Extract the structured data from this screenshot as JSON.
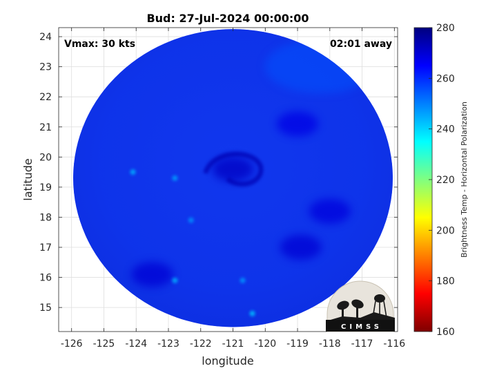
{
  "chart_data": {
    "type": "heatmap",
    "title": "Bud: 27-Jul-2024 00:00:00",
    "xlabel": "longitude",
    "ylabel": "latitude",
    "xlim": [
      -126.4,
      -115.9
    ],
    "ylim": [
      14.2,
      24.3
    ],
    "x_ticks": [
      "-126",
      "-125",
      "-124",
      "-123",
      "-122",
      "-121",
      "-120",
      "-119",
      "-118",
      "-117",
      "-116"
    ],
    "y_ticks": [
      "15",
      "16",
      "17",
      "18",
      "19",
      "20",
      "21",
      "22",
      "23",
      "24"
    ],
    "grid": true,
    "annotations": {
      "vmax": "Vmax: 30 kts",
      "time_offset": "02:01 away"
    },
    "colorbar": {
      "label": "Brightness Temp - Horizontal Polarization",
      "range": [
        160,
        280
      ],
      "ticks": [
        "160",
        "180",
        "200",
        "220",
        "240",
        "260",
        "280"
      ],
      "colormap": [
        "#7f0000",
        "#ff0000",
        "#ff8000",
        "#ffff00",
        "#80ff80",
        "#00ffff",
        "#0080ff",
        "#0000ff",
        "#00007f"
      ]
    },
    "swath": {
      "shape": "circle",
      "center": {
        "lon": -121.0,
        "lat": 19.3
      },
      "radius_deg": 5.5,
      "typical_value": 262,
      "cold_features": [
        {
          "lon": -124.1,
          "lat": 19.5,
          "value": 244
        },
        {
          "lon": -122.8,
          "lat": 19.3,
          "value": 246
        },
        {
          "lon": -122.3,
          "lat": 17.9,
          "value": 248
        },
        {
          "lon": -122.8,
          "lat": 15.9,
          "value": 244
        },
        {
          "lon": -120.7,
          "lat": 15.9,
          "value": 247
        },
        {
          "lon": -120.4,
          "lat": 14.8,
          "value": 242
        }
      ],
      "warm_features": [
        {
          "lon": -121.0,
          "lat": 19.6,
          "value": 272
        },
        {
          "lon": -123.5,
          "lat": 16.1,
          "value": 270
        },
        {
          "lon": -118.9,
          "lat": 17.0,
          "value": 270
        },
        {
          "lon": -119.0,
          "lat": 21.1,
          "value": 268
        },
        {
          "lon": -118.0,
          "lat": 18.2,
          "value": 269
        }
      ]
    }
  },
  "logo": {
    "text": "CIMSS"
  }
}
